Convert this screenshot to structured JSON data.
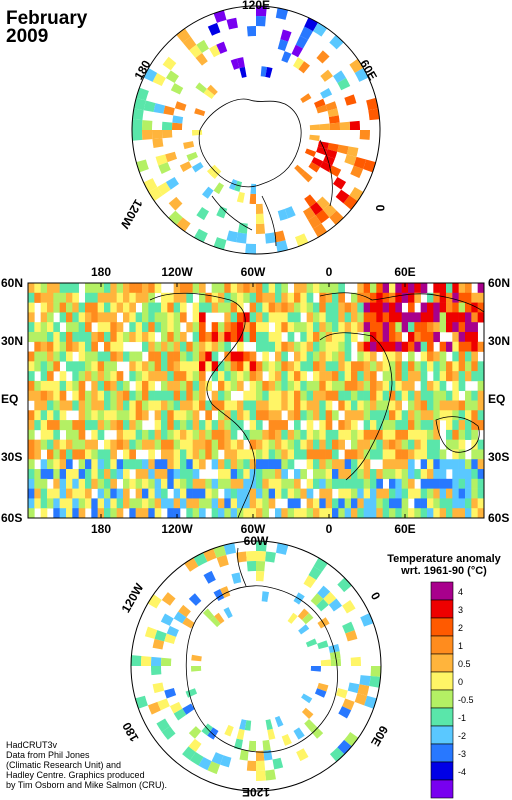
{
  "title": {
    "month": "February",
    "year": "2009"
  },
  "legend": {
    "title_line1": "Temperature anomaly",
    "title_line2": "wrt. 1961-90  (°C)",
    "bins": [
      {
        "label": "4",
        "color": "#a8008c"
      },
      {
        "label": "3",
        "color": "#ee0000"
      },
      {
        "label": "2",
        "color": "#ff5a00"
      },
      {
        "label": "1",
        "color": "#ff8c1e"
      },
      {
        "label": "0.5",
        "color": "#ffb43c"
      },
      {
        "label": "0",
        "color": "#fff566"
      },
      {
        "label": "-0.5",
        "color": "#b4f064"
      },
      {
        "label": "-1",
        "color": "#5ae6aa"
      },
      {
        "label": "-2",
        "color": "#5ac8ff"
      },
      {
        "label": "-3",
        "color": "#2878ff"
      },
      {
        "label": "-4",
        "color": "#0000e6"
      },
      {
        "label": "",
        "color": "#7800f0"
      }
    ]
  },
  "credit": [
    "HadCRUT3v",
    "Data from Phil Jones",
    "(Climatic Research Unit) and",
    "Hadley Centre.  Graphics produced",
    "by Tim Osborn and Mike Salmon (CRU)."
  ],
  "north_polar": {
    "labels": [
      "120E",
      "60E",
      "0",
      "120W",
      "180"
    ]
  },
  "south_polar": {
    "labels": [
      "120W",
      "60W",
      "0",
      "180",
      "60E",
      "120E"
    ]
  },
  "main_map": {
    "lon_labels": [
      "180",
      "120W",
      "60W",
      "0",
      "60E"
    ],
    "lat_labels_left": [
      "60N",
      "30N",
      "EQ",
      "30S",
      "60S"
    ],
    "lat_labels_right": [
      "60N",
      "30N",
      "EQ",
      "30S",
      "60S"
    ]
  }
}
